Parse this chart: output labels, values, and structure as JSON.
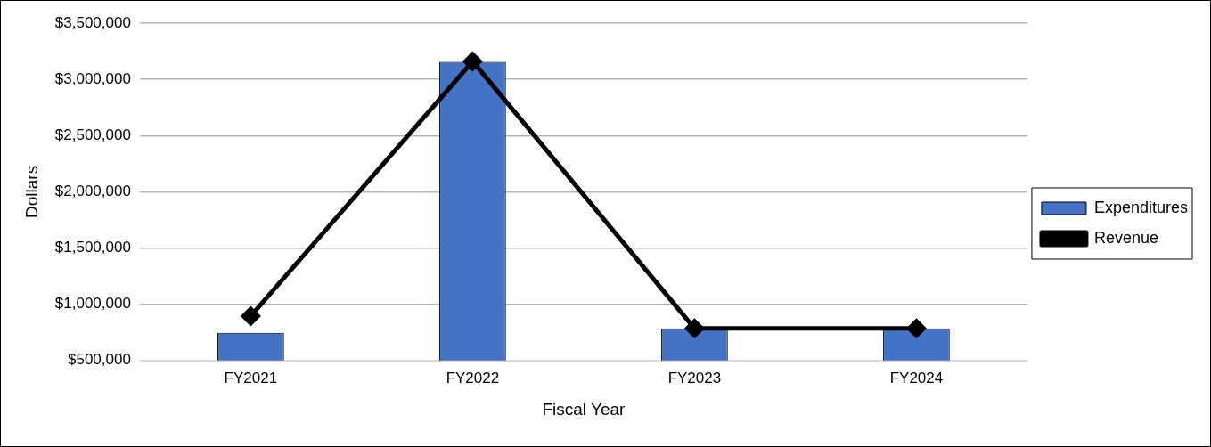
{
  "chart_data": {
    "type": "bar",
    "xlabel": "Fiscal Year",
    "ylabel": "Dollars",
    "categories": [
      "FY2021",
      "FY2022",
      "FY2023",
      "FY2024"
    ],
    "series": [
      {
        "name": "Expenditures",
        "color": "#4472c4",
        "values": [
          745000,
          3155000,
          785000,
          785000
        ]
      },
      {
        "name": "Revenue",
        "type": "line",
        "color": "#000000",
        "values": [
          895000,
          3160000,
          785000,
          785000
        ],
        "marker": "diamond"
      }
    ],
    "ylim": [
      500000,
      3500000
    ],
    "yticks": [
      {
        "value": 500000,
        "label": "$500,000"
      },
      {
        "value": 1000000,
        "label": "$1,000,000"
      },
      {
        "value": 1500000,
        "label": "$1,500,000"
      },
      {
        "value": 2000000,
        "label": "$2,000,000"
      },
      {
        "value": 2500000,
        "label": "$2,500,000"
      },
      {
        "value": 3000000,
        "label": "$3,000,000"
      },
      {
        "value": 3500000,
        "label": "$3,500,000"
      }
    ],
    "grid": "y",
    "legend": "right"
  }
}
